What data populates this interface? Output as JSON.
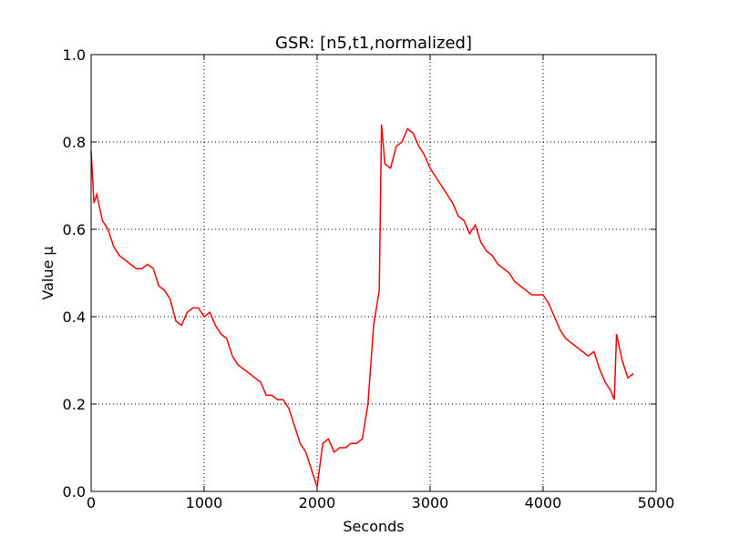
{
  "chart_data": {
    "type": "line",
    "title": "GSR: [n5,t1,normalized]",
    "xlabel": "Seconds",
    "ylabel": "Value μ",
    "x": [
      0,
      25,
      50,
      100,
      150,
      200,
      250,
      300,
      350,
      400,
      450,
      500,
      550,
      600,
      650,
      700,
      750,
      800,
      850,
      900,
      950,
      1000,
      1050,
      1100,
      1150,
      1200,
      1250,
      1300,
      1350,
      1400,
      1450,
      1500,
      1550,
      1600,
      1650,
      1700,
      1750,
      1800,
      1850,
      1900,
      1950,
      2000,
      2050,
      2100,
      2150,
      2200,
      2250,
      2300,
      2350,
      2400,
      2450,
      2500,
      2550,
      2570,
      2600,
      2650,
      2700,
      2750,
      2800,
      2850,
      2900,
      2950,
      3000,
      3050,
      3100,
      3150,
      3200,
      3250,
      3300,
      3350,
      3400,
      3450,
      3500,
      3550,
      3600,
      3650,
      3700,
      3750,
      3800,
      3850,
      3900,
      3950,
      4000,
      4050,
      4100,
      4150,
      4200,
      4250,
      4300,
      4350,
      4400,
      4450,
      4500,
      4550,
      4600,
      4630,
      4650,
      4700,
      4750,
      4800
    ],
    "series": [
      {
        "name": "GSR",
        "color": "#ff0000",
        "values": [
          0.78,
          0.66,
          0.68,
          0.62,
          0.6,
          0.56,
          0.54,
          0.53,
          0.52,
          0.51,
          0.51,
          0.52,
          0.51,
          0.47,
          0.46,
          0.44,
          0.39,
          0.38,
          0.41,
          0.42,
          0.42,
          0.4,
          0.41,
          0.38,
          0.36,
          0.35,
          0.31,
          0.29,
          0.28,
          0.27,
          0.26,
          0.25,
          0.22,
          0.22,
          0.21,
          0.21,
          0.19,
          0.15,
          0.11,
          0.09,
          0.05,
          0.01,
          0.11,
          0.12,
          0.09,
          0.1,
          0.1,
          0.11,
          0.11,
          0.12,
          0.2,
          0.38,
          0.46,
          0.84,
          0.75,
          0.74,
          0.79,
          0.8,
          0.83,
          0.82,
          0.79,
          0.77,
          0.74,
          0.72,
          0.7,
          0.68,
          0.66,
          0.63,
          0.62,
          0.59,
          0.61,
          0.57,
          0.55,
          0.54,
          0.52,
          0.51,
          0.5,
          0.48,
          0.47,
          0.46,
          0.45,
          0.45,
          0.45,
          0.43,
          0.4,
          0.37,
          0.35,
          0.34,
          0.33,
          0.32,
          0.31,
          0.32,
          0.28,
          0.25,
          0.23,
          0.21,
          0.36,
          0.3,
          0.26,
          0.27
        ]
      }
    ],
    "xlim": [
      0,
      5000
    ],
    "xticks": [
      0,
      1000,
      2000,
      3000,
      4000,
      5000
    ],
    "ylim": [
      0,
      1
    ],
    "yticks": [
      {
        "value": 0,
        "label": "0.0"
      },
      0.2,
      0.4,
      0.6,
      0.8,
      {
        "value": 1,
        "label": "1.0"
      }
    ],
    "grid": true
  }
}
